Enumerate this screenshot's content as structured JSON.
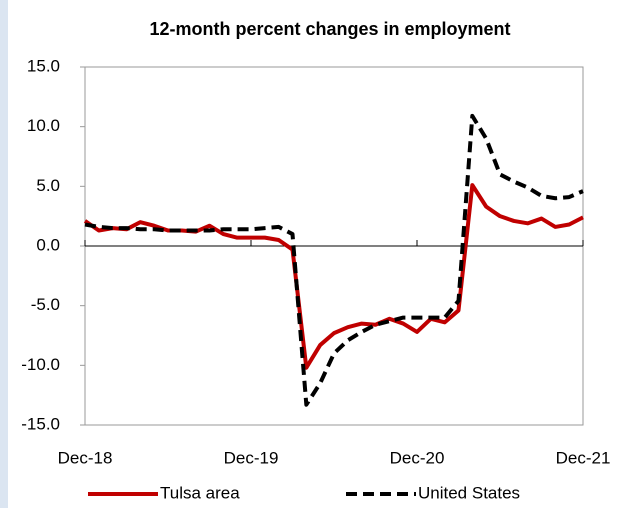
{
  "chart_data": {
    "type": "line",
    "title": "12-month percent changes in employment",
    "categories": [
      "Dec-18",
      null,
      null,
      null,
      null,
      null,
      null,
      null,
      null,
      null,
      null,
      null,
      "Dec-19",
      null,
      null,
      null,
      null,
      null,
      null,
      null,
      null,
      null,
      null,
      null,
      "Dec-20",
      null,
      null,
      null,
      null,
      null,
      null,
      null,
      null,
      null,
      null,
      null,
      "Dec-21"
    ],
    "series": [
      {
        "name": "Tulsa area",
        "color": "#c00000",
        "dashed": false,
        "values": [
          2.1,
          1.3,
          1.5,
          1.4,
          2.0,
          1.7,
          1.3,
          1.3,
          1.2,
          1.7,
          1.0,
          0.7,
          0.7,
          0.7,
          0.5,
          -0.3,
          -10.2,
          -8.3,
          -7.3,
          -6.8,
          -6.5,
          -6.6,
          -6.1,
          -6.5,
          -7.2,
          -6.1,
          -6.4,
          -5.4,
          5.1,
          3.3,
          2.5,
          2.1,
          1.9,
          2.3,
          1.6,
          1.8,
          2.4
        ]
      },
      {
        "name": "United States",
        "color": "#000000",
        "dashed": true,
        "values": [
          1.8,
          1.6,
          1.5,
          1.5,
          1.4,
          1.4,
          1.3,
          1.3,
          1.3,
          1.3,
          1.4,
          1.4,
          1.4,
          1.5,
          1.6,
          1.0,
          -13.3,
          -11.5,
          -9.0,
          -7.9,
          -7.2,
          -6.6,
          -6.3,
          -6.0,
          -6.0,
          -6.0,
          -6.0,
          -4.6,
          10.9,
          9.0,
          6.0,
          5.4,
          4.9,
          4.2,
          4.0,
          4.1,
          4.6
        ]
      }
    ],
    "ylim": [
      -15,
      15
    ],
    "yticks": [
      {
        "value": -15,
        "label": "-15.0"
      },
      {
        "value": -10,
        "label": "-10.0"
      },
      {
        "value": -5,
        "label": "-5.0"
      },
      {
        "value": 0,
        "label": "0.0"
      },
      {
        "value": 5,
        "label": "5.0"
      },
      {
        "value": 10,
        "label": "10.0"
      },
      {
        "value": 15,
        "label": "15.0"
      }
    ],
    "grid": false,
    "legend": "bottom"
  }
}
